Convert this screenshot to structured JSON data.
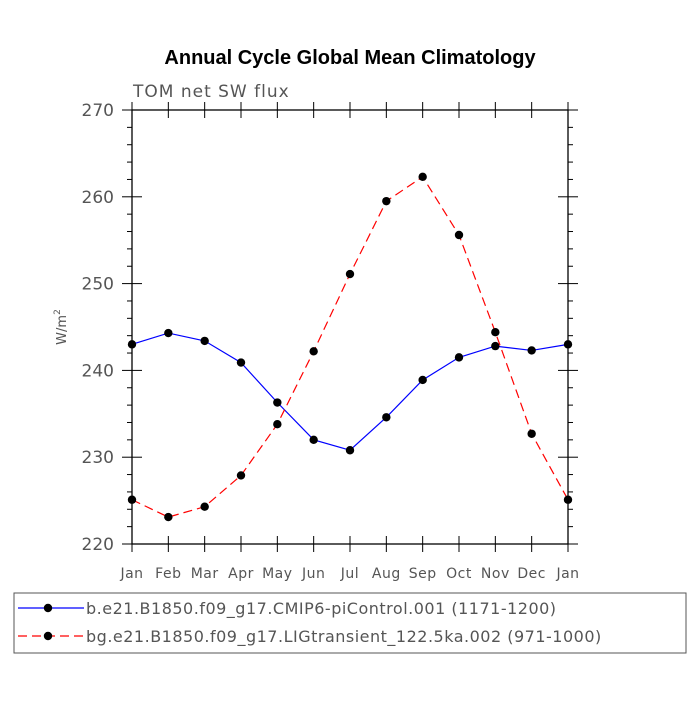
{
  "chart_data": {
    "type": "line",
    "title": "Annual Cycle Global Mean Climatology",
    "subtitle": "TOM net SW flux",
    "ylabel": "W/m",
    "ylabel_superscript": "2",
    "xlabel": "",
    "categories": [
      "Jan",
      "Feb",
      "Mar",
      "Apr",
      "May",
      "Jun",
      "Jul",
      "Aug",
      "Sep",
      "Oct",
      "Nov",
      "Dec",
      "Jan"
    ],
    "ylim": [
      220,
      270
    ],
    "yticks": [
      220,
      230,
      240,
      250,
      260,
      270
    ],
    "grid": false,
    "legend_position": "bottom",
    "series": [
      {
        "name": "b.e21.B1850.f09_g17.CMIP6-piControl.001 (1171-1200)",
        "color": "#0000ff",
        "dash": "solid",
        "marker": "filled-circle",
        "values": [
          243.0,
          244.3,
          243.4,
          240.9,
          236.3,
          232.0,
          230.8,
          234.6,
          238.9,
          241.5,
          242.8,
          242.3,
          243.0
        ]
      },
      {
        "name": "bg.e21.B1850.f09_g17.LIGtransient_122.5ka.002 (971-1000)",
        "color": "#ff0000",
        "dash": "dashed",
        "marker": "filled-circle",
        "values": [
          225.1,
          223.1,
          224.3,
          227.9,
          233.8,
          242.2,
          251.1,
          259.5,
          262.3,
          255.6,
          244.4,
          232.7,
          225.1
        ]
      }
    ]
  }
}
